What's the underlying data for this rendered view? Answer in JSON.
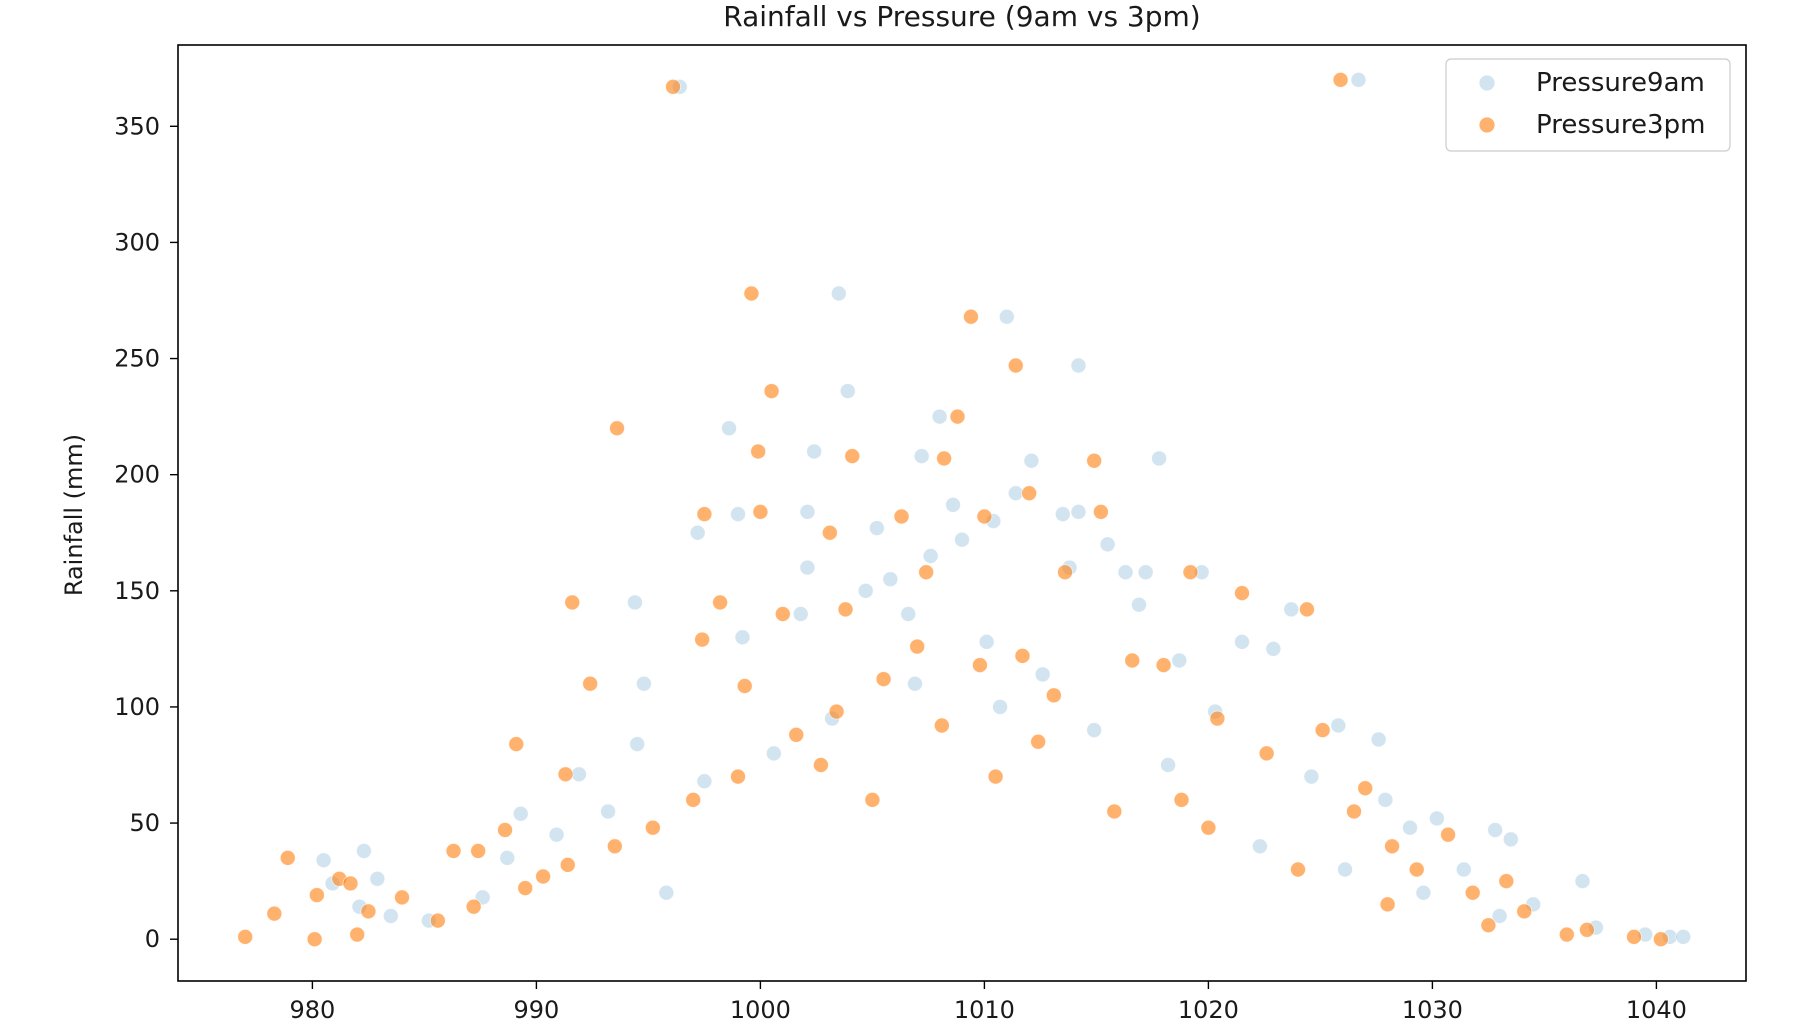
{
  "chart_data": {
    "type": "scatter",
    "title": "Rainfall vs Pressure (9am vs 3pm)",
    "xlabel": "",
    "ylabel": "Rainfall (mm)",
    "xlim": [
      974,
      1044
    ],
    "ylim": [
      -18,
      385
    ],
    "xticks": [
      980,
      990,
      1000,
      1010,
      1020,
      1030,
      1040
    ],
    "yticks": [
      0,
      50,
      100,
      150,
      200,
      250,
      300,
      350
    ],
    "grid": false,
    "legend_position": "top-right",
    "series": [
      {
        "name": "Pressure9am",
        "color": "#1f77b4",
        "opacity": 0.2,
        "points": [
          [
            996.4,
            367
          ],
          [
            1026.7,
            370
          ],
          [
            1003.5,
            278
          ],
          [
            1011.0,
            268
          ],
          [
            1014.2,
            247
          ],
          [
            1003.9,
            236
          ],
          [
            998.6,
            220
          ],
          [
            1008.0,
            225
          ],
          [
            1002.4,
            210
          ],
          [
            1007.2,
            208
          ],
          [
            1012.1,
            206
          ],
          [
            1017.8,
            207
          ],
          [
            1011.4,
            192
          ],
          [
            1002.1,
            184
          ],
          [
            1008.6,
            187
          ],
          [
            1014.2,
            184
          ],
          [
            999.0,
            183
          ],
          [
            997.2,
            175
          ],
          [
            1005.2,
            177
          ],
          [
            1013.5,
            183
          ],
          [
            1016.3,
            158
          ],
          [
            1017.2,
            158
          ],
          [
            1019.7,
            158
          ],
          [
            994.4,
            145
          ],
          [
            1023.7,
            142
          ],
          [
            1002.1,
            160
          ],
          [
            1007.6,
            165
          ],
          [
            1010.4,
            180
          ],
          [
            1015.5,
            170
          ],
          [
            1005.8,
            155
          ],
          [
            994.8,
            110
          ],
          [
            994.5,
            84
          ],
          [
            991.9,
            71
          ],
          [
            989.3,
            54
          ],
          [
            1027.6,
            86
          ],
          [
            1032.8,
            47
          ],
          [
            1033.5,
            43
          ],
          [
            980.5,
            34
          ],
          [
            982.3,
            38
          ],
          [
            980.9,
            24
          ],
          [
            982.9,
            26
          ],
          [
            982.1,
            14
          ],
          [
            983.5,
            10
          ],
          [
            1036.7,
            25
          ],
          [
            1040.6,
            1
          ],
          [
            1041.2,
            1
          ],
          [
            1039.5,
            2
          ],
          [
            1030.2,
            52
          ],
          [
            1029.0,
            48
          ],
          [
            1025.8,
            92
          ],
          [
            1018.7,
            120
          ],
          [
            1021.5,
            128
          ],
          [
            1022.9,
            125
          ],
          [
            1013.8,
            160
          ],
          [
            1009.0,
            172
          ],
          [
            1004.7,
            150
          ],
          [
            1001.8,
            140
          ],
          [
            999.2,
            130
          ],
          [
            1006.6,
            140
          ],
          [
            1010.1,
            128
          ],
          [
            1012.6,
            114
          ],
          [
            1016.9,
            144
          ],
          [
            1020.3,
            98
          ],
          [
            1024.6,
            70
          ],
          [
            1027.9,
            60
          ],
          [
            1031.4,
            30
          ],
          [
            1034.5,
            15
          ],
          [
            1037.3,
            5
          ],
          [
            985.2,
            8
          ],
          [
            987.6,
            18
          ],
          [
            988.7,
            35
          ],
          [
            990.9,
            45
          ],
          [
            993.2,
            55
          ],
          [
            995.8,
            20
          ],
          [
            997.5,
            68
          ],
          [
            1000.6,
            80
          ],
          [
            1003.2,
            95
          ],
          [
            1006.9,
            110
          ],
          [
            1010.7,
            100
          ],
          [
            1014.9,
            90
          ],
          [
            1018.2,
            75
          ],
          [
            1022.3,
            40
          ],
          [
            1026.1,
            30
          ],
          [
            1029.6,
            20
          ],
          [
            1033.0,
            10
          ]
        ]
      },
      {
        "name": "Pressure3pm",
        "color": "#ff7f0e",
        "opacity": 0.6,
        "points": [
          [
            996.1,
            367
          ],
          [
            1025.9,
            370
          ],
          [
            999.6,
            278
          ],
          [
            1009.4,
            268
          ],
          [
            1011.4,
            247
          ],
          [
            1000.5,
            236
          ],
          [
            993.6,
            220
          ],
          [
            1008.8,
            225
          ],
          [
            999.9,
            210
          ],
          [
            1004.1,
            208
          ],
          [
            1014.9,
            206
          ],
          [
            1008.2,
            207
          ],
          [
            1012.0,
            192
          ],
          [
            997.5,
            183
          ],
          [
            1000.0,
            184
          ],
          [
            1003.1,
            175
          ],
          [
            1006.3,
            182
          ],
          [
            1010.0,
            182
          ],
          [
            1015.2,
            184
          ],
          [
            991.6,
            145
          ],
          [
            992.4,
            110
          ],
          [
            989.1,
            84
          ],
          [
            991.3,
            71
          ],
          [
            1019.2,
            158
          ],
          [
            1021.5,
            149
          ],
          [
            1024.4,
            142
          ],
          [
            1013.6,
            158
          ],
          [
            1007.4,
            158
          ],
          [
            1003.8,
            142
          ],
          [
            1001.0,
            140
          ],
          [
            998.2,
            145
          ],
          [
            997.4,
            129
          ],
          [
            999.3,
            109
          ],
          [
            977.0,
            1
          ],
          [
            978.3,
            11
          ],
          [
            978.9,
            35
          ],
          [
            980.2,
            19
          ],
          [
            980.1,
            0
          ],
          [
            981.2,
            26
          ],
          [
            981.7,
            24
          ],
          [
            982.0,
            2
          ],
          [
            982.5,
            12
          ],
          [
            984.0,
            18
          ],
          [
            986.3,
            38
          ],
          [
            987.4,
            38
          ],
          [
            988.6,
            47
          ],
          [
            990.3,
            27
          ],
          [
            1026.5,
            55
          ],
          [
            1028.2,
            40
          ],
          [
            1031.8,
            20
          ],
          [
            1034.1,
            12
          ],
          [
            1036.9,
            4
          ],
          [
            1039.0,
            1
          ],
          [
            1040.2,
            0
          ],
          [
            1033.3,
            25
          ],
          [
            1030.7,
            45
          ],
          [
            1029.3,
            30
          ],
          [
            1027.0,
            65
          ],
          [
            1025.1,
            90
          ],
          [
            1022.6,
            80
          ],
          [
            1020.4,
            95
          ],
          [
            1018.0,
            118
          ],
          [
            1016.6,
            120
          ],
          [
            1013.1,
            105
          ],
          [
            1011.7,
            122
          ],
          [
            1009.8,
            118
          ],
          [
            1007.0,
            126
          ],
          [
            1005.5,
            112
          ],
          [
            1003.4,
            98
          ],
          [
            1001.6,
            88
          ],
          [
            999.0,
            70
          ],
          [
            997.0,
            60
          ],
          [
            995.2,
            48
          ],
          [
            993.5,
            40
          ],
          [
            991.4,
            32
          ],
          [
            989.5,
            22
          ],
          [
            987.2,
            14
          ],
          [
            985.6,
            8
          ],
          [
            1005.0,
            60
          ],
          [
            1010.5,
            70
          ],
          [
            1015.8,
            55
          ],
          [
            1020.0,
            48
          ],
          [
            1024.0,
            30
          ],
          [
            1028.0,
            15
          ],
          [
            1032.5,
            6
          ],
          [
            1036.0,
            2
          ],
          [
            1012.4,
            85
          ],
          [
            1008.1,
            92
          ],
          [
            1002.7,
            75
          ],
          [
            1018.8,
            60
          ]
        ]
      }
    ]
  }
}
